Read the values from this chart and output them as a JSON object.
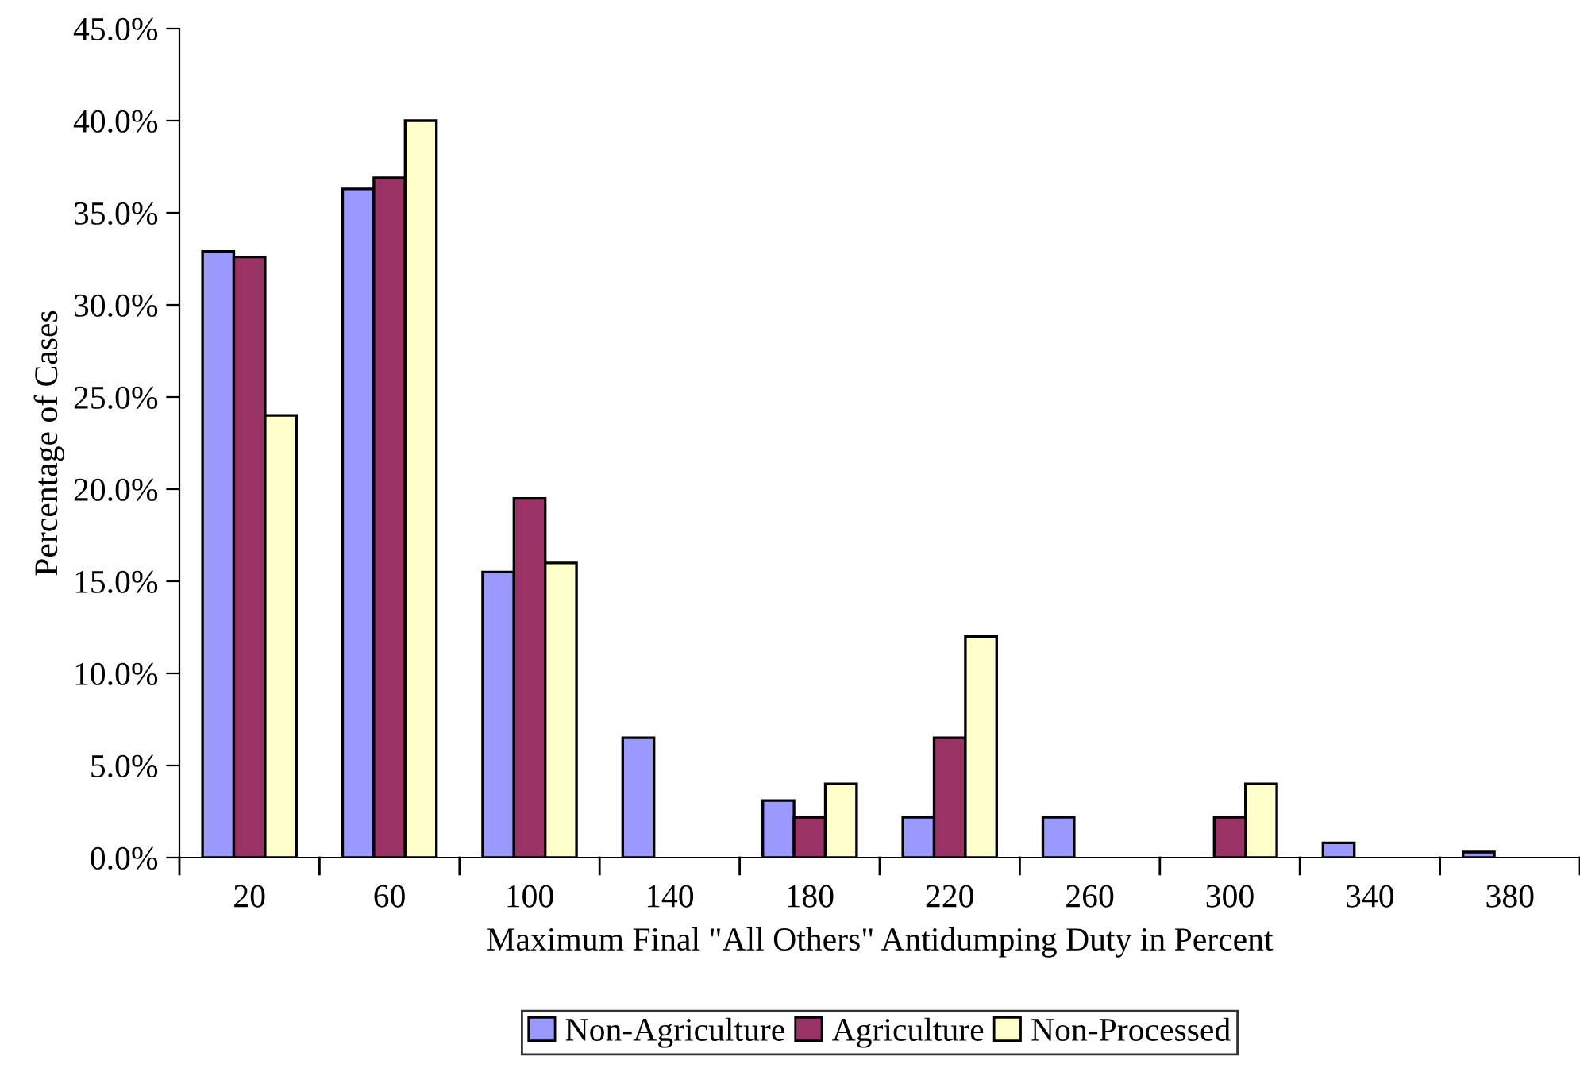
{
  "chart_data": {
    "type": "bar",
    "xlabel": "Maximum Final \"All Others\" Antidumping Duty in Percent",
    "ylabel": "Percentage of Cases",
    "categories": [
      "20",
      "60",
      "100",
      "140",
      "180",
      "220",
      "260",
      "300",
      "340",
      "380"
    ],
    "series": [
      {
        "name": "Non-Agriculture",
        "color": "#9999ff",
        "values": [
          32.9,
          36.3,
          15.5,
          6.5,
          3.1,
          2.2,
          2.2,
          0,
          0.8,
          0.3
        ]
      },
      {
        "name": "Agriculture",
        "color": "#993366",
        "values": [
          32.6,
          36.9,
          19.5,
          0,
          2.2,
          6.5,
          0,
          2.2,
          0,
          0
        ]
      },
      {
        "name": "Non-Processed",
        "color": "#ffffcc",
        "values": [
          24.0,
          40.0,
          16.0,
          0,
          4.0,
          12.0,
          0,
          4.0,
          0,
          0
        ]
      }
    ],
    "ylim": [
      0,
      45
    ],
    "yticks": [
      {
        "value": 0,
        "label": "0.0%"
      },
      {
        "value": 5,
        "label": "5.0%"
      },
      {
        "value": 10,
        "label": "10.0%"
      },
      {
        "value": 15,
        "label": "15.0%"
      },
      {
        "value": 20,
        "label": "20.0%"
      },
      {
        "value": 25,
        "label": "25.0%"
      },
      {
        "value": 30,
        "label": "30.0%"
      },
      {
        "value": 35,
        "label": "35.0%"
      },
      {
        "value": 40,
        "label": "40.0%"
      },
      {
        "value": 45,
        "label": "45.0%"
      }
    ],
    "grid": false,
    "legend": "bottom"
  }
}
